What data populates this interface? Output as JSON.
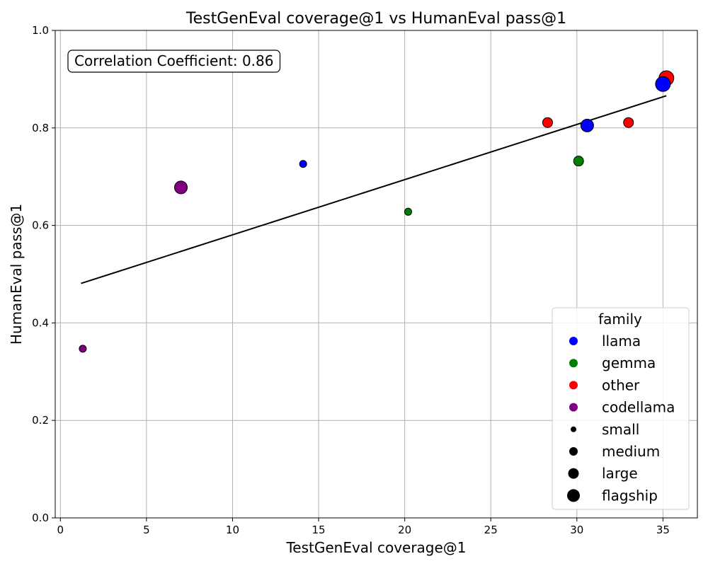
{
  "chart_data": {
    "type": "scatter",
    "title": "TestGenEval coverage@1 vs HumanEval pass@1",
    "xlabel": "TestGenEval coverage@1",
    "ylabel": "HumanEval pass@1",
    "xlim": [
      -0.3,
      37.0
    ],
    "ylim": [
      0.0,
      1.0
    ],
    "xticks": [
      0,
      5,
      10,
      15,
      20,
      25,
      30,
      35
    ],
    "yticks": [
      0.0,
      0.2,
      0.4,
      0.6,
      0.8,
      1.0
    ],
    "grid": true,
    "annotation": "Correlation Coefficient: 0.86",
    "family_colors": {
      "llama": "#0000ff",
      "gemma": "#008000",
      "other": "#ff0000",
      "codellama": "#800080"
    },
    "points": [
      {
        "x": 1.3,
        "y": 0.347,
        "family": "codellama",
        "size": "small"
      },
      {
        "x": 7.0,
        "y": 0.678,
        "family": "codellama",
        "size": "large"
      },
      {
        "x": 14.1,
        "y": 0.726,
        "family": "llama",
        "size": "small"
      },
      {
        "x": 20.2,
        "y": 0.628,
        "family": "gemma",
        "size": "small"
      },
      {
        "x": 28.3,
        "y": 0.811,
        "family": "other",
        "size": "medium"
      },
      {
        "x": 30.1,
        "y": 0.732,
        "family": "gemma",
        "size": "medium"
      },
      {
        "x": 30.6,
        "y": 0.805,
        "family": "llama",
        "size": "large"
      },
      {
        "x": 33.0,
        "y": 0.811,
        "family": "other",
        "size": "medium"
      },
      {
        "x": 35.2,
        "y": 0.902,
        "family": "other",
        "size": "flagship"
      },
      {
        "x": 35.0,
        "y": 0.89,
        "family": "llama",
        "size": "flagship"
      }
    ],
    "trend_line": {
      "x": [
        1.2,
        35.2
      ],
      "y": [
        0.481,
        0.866
      ]
    },
    "legend": {
      "title": "family",
      "position": "lower-right",
      "entries": [
        {
          "label": "llama",
          "kind": "family",
          "family": "llama"
        },
        {
          "label": "gemma",
          "kind": "family",
          "family": "gemma"
        },
        {
          "label": "other",
          "kind": "family",
          "family": "other"
        },
        {
          "label": "codellama",
          "kind": "family",
          "family": "codellama"
        },
        {
          "label": "small",
          "kind": "size",
          "size": "small"
        },
        {
          "label": "medium",
          "kind": "size",
          "size": "medium"
        },
        {
          "label": "large",
          "kind": "size",
          "size": "large"
        },
        {
          "label": "flagship",
          "kind": "size",
          "size": "flagship"
        }
      ]
    }
  }
}
